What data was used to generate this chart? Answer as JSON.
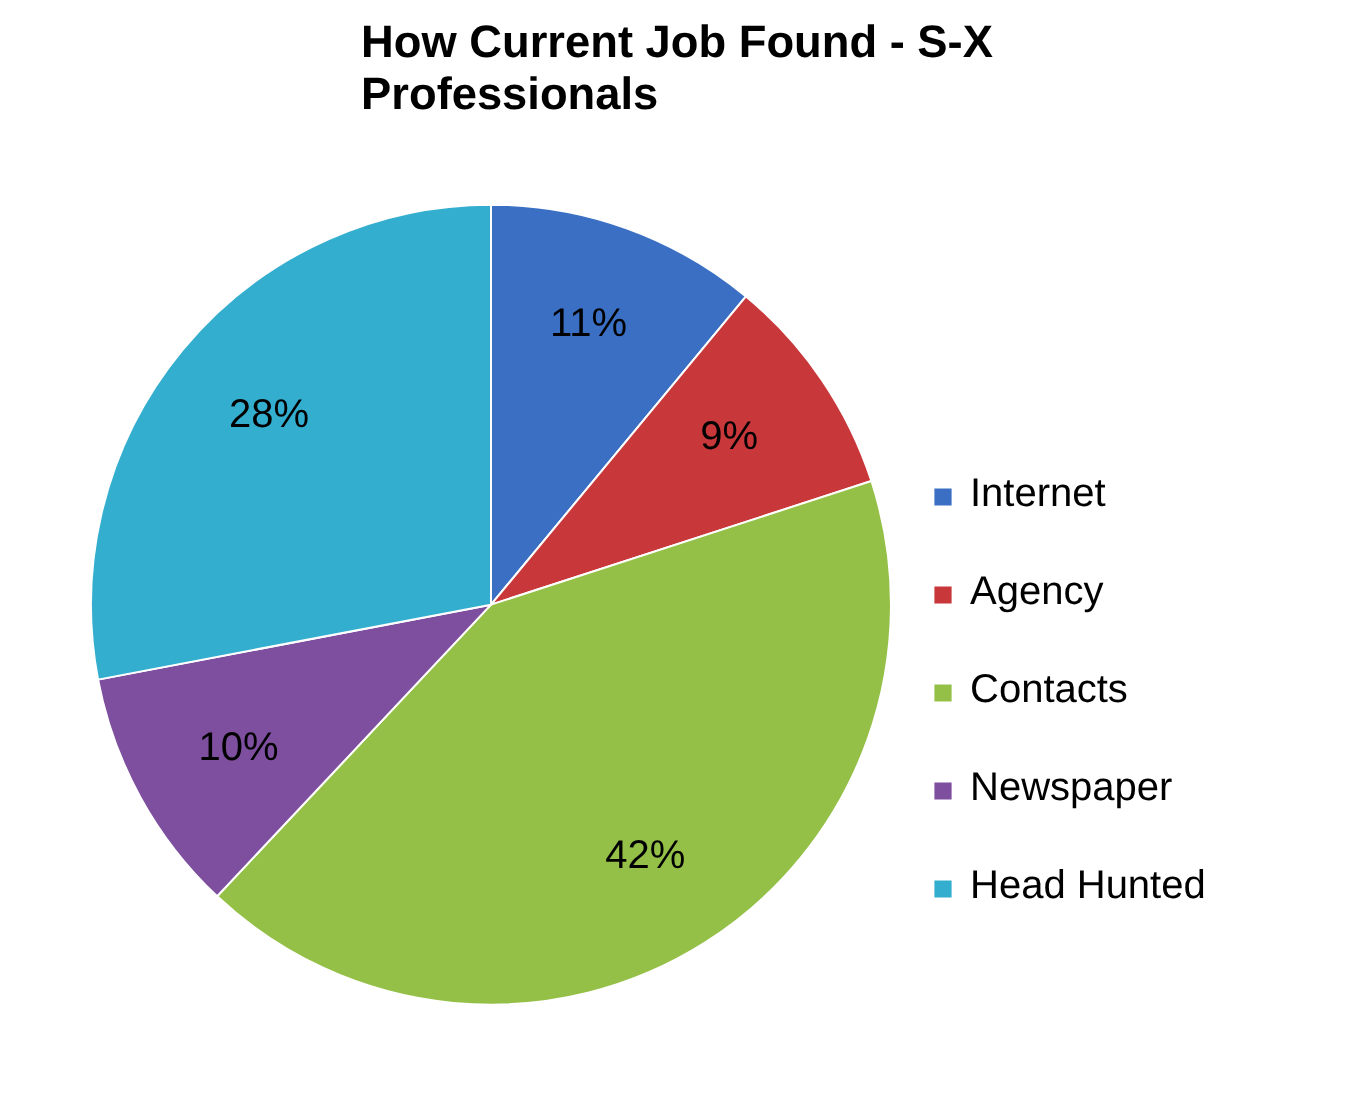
{
  "chart_data": {
    "type": "pie",
    "title": "How Current Job Found - S-X\nProfessionals",
    "categories": [
      "Internet",
      "Agency",
      "Contacts",
      "Newspaper",
      "Head Hunted"
    ],
    "values": [
      11,
      9,
      42,
      10,
      28
    ],
    "colors": [
      "#3a6fc4",
      "#c8373a",
      "#95c048",
      "#7d4f9e",
      "#34aecf"
    ],
    "value_labels": [
      "11%",
      "9%",
      "42%",
      "10%",
      "28%"
    ],
    "legend": "right"
  }
}
